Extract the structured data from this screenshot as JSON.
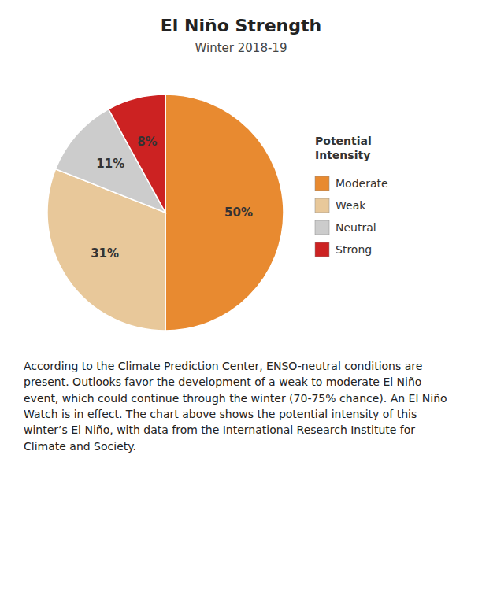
{
  "chart_data": {
    "type": "pie",
    "title": "El Niño Strength",
    "subtitle": "Winter 2018-19",
    "categories": [
      "Moderate",
      "Weak",
      "Neutral",
      "Strong"
    ],
    "values": [
      50,
      31,
      11,
      8
    ],
    "value_labels": [
      "50%",
      "31%",
      "11%",
      "8%"
    ],
    "colors": [
      "#e88a30",
      "#e8c89a",
      "#cccccc",
      "#cc2222"
    ],
    "data_labels": true,
    "legend": "right",
    "annotations": [
      "Potential\nIntensity",
      "According to the Climate Prediction Center, ENSO-neutral conditions are present. Outlooks favor the development of a weak to moderate El Niño event, which could continue through the winter (70-75% chance). An El Niño Watch is in effect. The chart above shows the potential intensity of this winter’s El Niño, with data from the International Research Institute for Climate and Society."
    ]
  }
}
